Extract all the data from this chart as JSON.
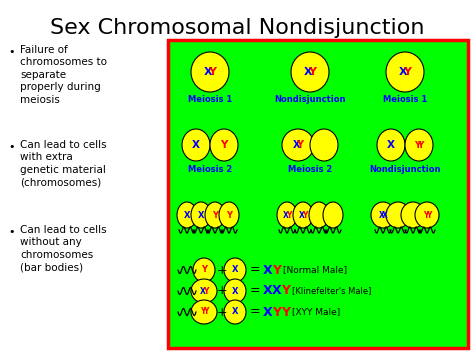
{
  "title": "Sex Chromosomal Nondisjunction",
  "title_fontsize": 16,
  "title_color": "#000000",
  "bg_color": "#ffffff",
  "green_box_color": "#00ff00",
  "red_border_color": "#ff0000",
  "bullet_points": [
    "Failure of\nchromosomes to\nseparate\nproperly during\nmeiosis",
    "Can lead to cells\nwith extra\ngenetic material\n(chromosomes)",
    "Can lead to cells\nwithout any\nchromosomes\n(bar bodies)"
  ],
  "bullet_fontsize": 7.5,
  "blue_label_color": "#0000ff",
  "red_label_color": "#ff0000",
  "yellow_cell_color": "#ffff00",
  "col1_labels": [
    "Meiosis 1",
    "Meiosis 2"
  ],
  "col2_labels": [
    "Nondisjunction",
    "Meiosis 2"
  ],
  "col3_labels": [
    "Meiosis 1",
    "Nondisjunction"
  ]
}
